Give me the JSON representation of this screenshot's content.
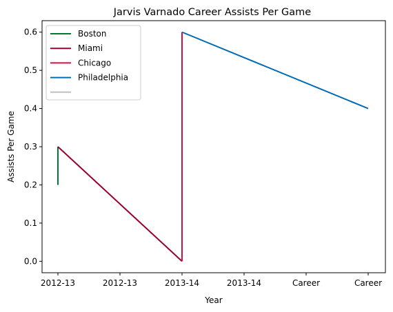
{
  "chart_data": {
    "type": "line",
    "title": "Jarvis Varnado Career Assists Per Game",
    "xlabel": "Year",
    "ylabel": "Assists Per Game",
    "x_categories": [
      "2012-13",
      "2012-13",
      "2013-14",
      "2013-14",
      "Career",
      "Career"
    ],
    "ylim": [
      -0.03,
      0.63
    ],
    "y_ticks": [
      0.0,
      0.1,
      0.2,
      0.3,
      0.4,
      0.5,
      0.6
    ],
    "grid": false,
    "legend_position": "top-left",
    "series": [
      {
        "name": "Boston",
        "color": "#007a33",
        "points": [
          [
            0,
            0.2
          ],
          [
            0,
            0.3
          ]
        ]
      },
      {
        "name": "Miami",
        "color": "#98002e",
        "points": [
          [
            0,
            0.3
          ],
          [
            2,
            0.0
          ]
        ]
      },
      {
        "name": "Chicago",
        "color": "#ce1141",
        "points": [
          [
            2,
            0.0
          ],
          [
            2,
            0.6
          ]
        ]
      },
      {
        "name": "Philadelphia",
        "color": "#006bb6",
        "points": [
          [
            2,
            0.6
          ],
          [
            5,
            0.4
          ]
        ]
      },
      {
        "name": "",
        "color": "#c0c0c0",
        "points": []
      }
    ]
  }
}
